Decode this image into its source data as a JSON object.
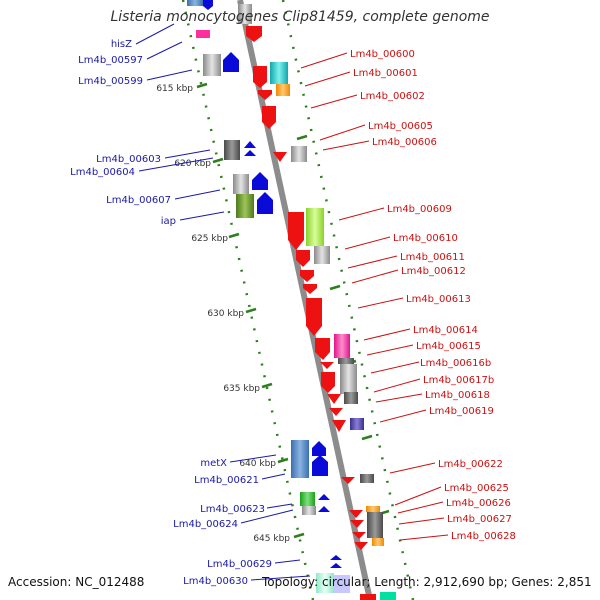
{
  "title": "Listeria monocytogenes Clip81459, complete genome",
  "footer": {
    "accession": "Accession: NC_012488",
    "summary": "Topology: circular; Length: 2,912,690 bp; Genes: 2,851"
  },
  "scale_labels": [
    "615 kbp",
    "620 kbp",
    "625 kbp",
    "630 kbp",
    "635 kbp",
    "640 kbp",
    "645 kbp"
  ],
  "left_genes": [
    "hisZ",
    "Lm4b_00597",
    "Lm4b_00599",
    "Lm4b_00603",
    "Lm4b_00604",
    "Lm4b_00607",
    "iap",
    "metX",
    "Lm4b_00621",
    "Lm4b_00623",
    "Lm4b_00624",
    "Lm4b_00629",
    "Lm4b_00630"
  ],
  "right_genes": [
    "Lm4b_00600",
    "Lm4b_00601",
    "Lm4b_00602",
    "Lm4b_00605",
    "Lm4b_00606",
    "Lm4b_00609",
    "Lm4b_00610",
    "Lm4b_00611",
    "Lm4b_00612",
    "Lm4b_00613",
    "Lm4b_00614",
    "Lm4b_00615",
    "Lm4b_00616b",
    "Lm4b_00617b",
    "Lm4b_00618",
    "Lm4b_00619",
    "Lm4b_00622",
    "Lm4b_00625",
    "Lm4b_00626",
    "Lm4b_00627",
    "Lm4b_00628"
  ],
  "colors": {
    "left_label": "#1a1aa6",
    "right_label": "#cc1111",
    "backbone": "#8c8c8c",
    "tick": "#2e7d1e",
    "forward_arrow": "#0b0bd9",
    "reverse_arrow": "#ee1111"
  }
}
